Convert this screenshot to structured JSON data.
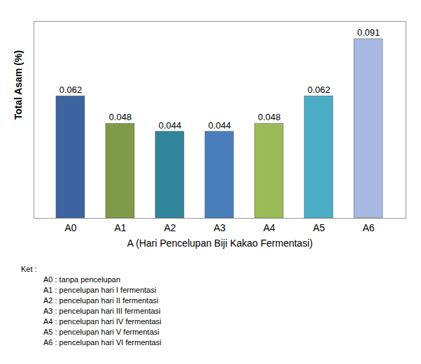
{
  "chart_data": {
    "type": "bar",
    "categories": [
      "A0",
      "A1",
      "A2",
      "A3",
      "A4",
      "A5",
      "A6"
    ],
    "values": [
      0.062,
      0.048,
      0.044,
      0.044,
      0.048,
      0.062,
      0.091
    ],
    "colors": [
      "#3d64a0",
      "#7f9a48",
      "#31859c",
      "#4a7ebb",
      "#9bbb59",
      "#4bacc6",
      "#a7b9e0"
    ],
    "x_label": "A (Hari Pencelupan Biji Kakao Fermentasi)",
    "y_label": "Total Asam (%)",
    "ylim": [
      0,
      0.1
    ],
    "data_labels": true,
    "tick_labels": "x",
    "grid": false,
    "annotations": [
      "Ket :",
      "A0 : tanpa pencelupan",
      "A1 : pencelupan hari I fermentasi",
      "A2 : pencelupan hari II fermentasi",
      "A3 : pencelupan hari III fermentasi",
      "A4 : pencelupan hari IV fermentasi",
      "A5 : pencelupan hari V fermentasi",
      "A6 : pencelupan hari VI fermentasi"
    ]
  }
}
